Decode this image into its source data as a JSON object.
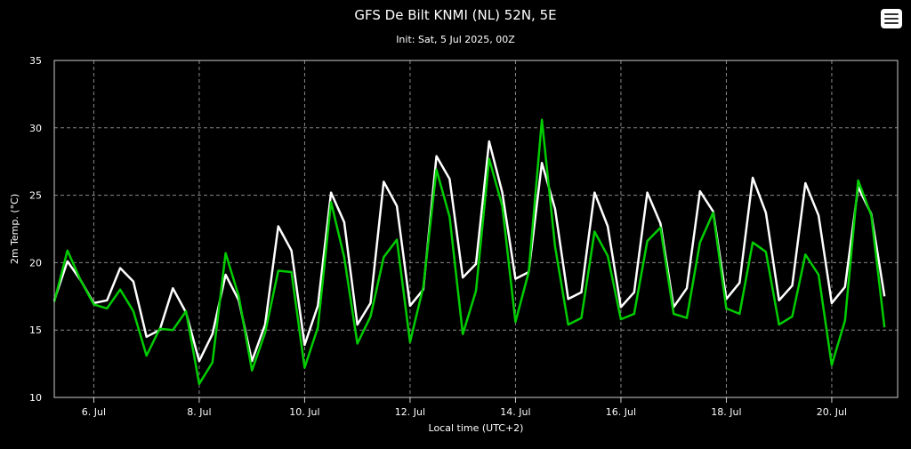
{
  "header": {
    "title": "GFS De Bilt KNMI (NL) 52N, 5E",
    "subtitle": "Init: Sat, 5 Jul 2025, 00Z",
    "menu_icon": "hamburger-menu-icon"
  },
  "chart_data": {
    "type": "line",
    "title": "GFS De Bilt KNMI (NL) 52N, 5E",
    "subtitle": "Init: Sat, 5 Jul 2025, 00Z",
    "xlabel": "Local time (UTC+2)",
    "ylabel": "2m Temp. (°C)",
    "ylim": [
      10,
      35
    ],
    "yticks": [
      10,
      15,
      20,
      25,
      30,
      35
    ],
    "xlim": [
      5.25,
      21.25
    ],
    "xticks": [
      {
        "value": 6,
        "label": "6. Jul"
      },
      {
        "value": 8,
        "label": "8. Jul"
      },
      {
        "value": 10,
        "label": "10. Jul"
      },
      {
        "value": 12,
        "label": "12. Jul"
      },
      {
        "value": 14,
        "label": "14. Jul"
      },
      {
        "value": 16,
        "label": "16. Jul"
      },
      {
        "value": 18,
        "label": "18. Jul"
      },
      {
        "value": 20,
        "label": "20. Jul"
      }
    ],
    "grid": true,
    "series": [
      {
        "color": "#ffffff",
        "points": [
          [
            5.25,
            17.2
          ],
          [
            5.5,
            20.1
          ],
          [
            5.75,
            18.7
          ],
          [
            6.0,
            17.0
          ],
          [
            6.25,
            17.2
          ],
          [
            6.5,
            19.6
          ],
          [
            6.75,
            18.6
          ],
          [
            7.0,
            14.5
          ],
          [
            7.25,
            15.0
          ],
          [
            7.5,
            18.1
          ],
          [
            7.75,
            16.3
          ],
          [
            8.0,
            12.7
          ],
          [
            8.25,
            14.7
          ],
          [
            8.5,
            19.1
          ],
          [
            8.75,
            17.2
          ],
          [
            9.0,
            12.7
          ],
          [
            9.25,
            15.4
          ],
          [
            9.5,
            22.7
          ],
          [
            9.75,
            20.9
          ],
          [
            10.0,
            13.9
          ],
          [
            10.25,
            16.8
          ],
          [
            10.5,
            25.2
          ],
          [
            10.75,
            23.0
          ],
          [
            11.0,
            15.4
          ],
          [
            11.25,
            17.0
          ],
          [
            11.5,
            26.0
          ],
          [
            11.75,
            24.2
          ],
          [
            12.0,
            16.8
          ],
          [
            12.25,
            18.0
          ],
          [
            12.5,
            27.9
          ],
          [
            12.75,
            26.2
          ],
          [
            13.0,
            18.9
          ],
          [
            13.25,
            19.9
          ],
          [
            13.5,
            29.0
          ],
          [
            13.75,
            25.2
          ],
          [
            14.0,
            18.8
          ],
          [
            14.25,
            19.3
          ],
          [
            14.5,
            27.4
          ],
          [
            14.75,
            24.0
          ],
          [
            15.0,
            17.3
          ],
          [
            15.25,
            17.8
          ],
          [
            15.5,
            25.2
          ],
          [
            15.75,
            22.7
          ],
          [
            16.0,
            16.7
          ],
          [
            16.25,
            17.8
          ],
          [
            16.5,
            25.2
          ],
          [
            16.75,
            22.9
          ],
          [
            17.0,
            16.7
          ],
          [
            17.25,
            18.1
          ],
          [
            17.5,
            25.3
          ],
          [
            17.75,
            23.8
          ],
          [
            18.0,
            17.3
          ],
          [
            18.25,
            18.5
          ],
          [
            18.5,
            26.3
          ],
          [
            18.75,
            23.7
          ],
          [
            19.0,
            17.2
          ],
          [
            19.25,
            18.3
          ],
          [
            19.5,
            25.9
          ],
          [
            19.75,
            23.5
          ],
          [
            20.0,
            17.0
          ],
          [
            20.25,
            18.2
          ],
          [
            20.5,
            25.6
          ],
          [
            20.75,
            23.6
          ],
          [
            21.0,
            17.5
          ]
        ]
      },
      {
        "color": "#00cc00",
        "points": [
          [
            5.25,
            17.1
          ],
          [
            5.5,
            20.9
          ],
          [
            5.75,
            18.7
          ],
          [
            6.0,
            16.9
          ],
          [
            6.25,
            16.6
          ],
          [
            6.5,
            18.0
          ],
          [
            6.75,
            16.4
          ],
          [
            7.0,
            13.1
          ],
          [
            7.25,
            15.1
          ],
          [
            7.5,
            15.0
          ],
          [
            7.75,
            16.4
          ],
          [
            8.0,
            11.0
          ],
          [
            8.25,
            12.6
          ],
          [
            8.5,
            20.7
          ],
          [
            8.75,
            17.5
          ],
          [
            9.0,
            12.0
          ],
          [
            9.25,
            14.8
          ],
          [
            9.5,
            19.4
          ],
          [
            9.75,
            19.3
          ],
          [
            10.0,
            12.2
          ],
          [
            10.25,
            15.2
          ],
          [
            10.5,
            24.5
          ],
          [
            10.75,
            20.4
          ],
          [
            11.0,
            14.0
          ],
          [
            11.25,
            16.0
          ],
          [
            11.5,
            20.4
          ],
          [
            11.75,
            21.7
          ],
          [
            12.0,
            14.1
          ],
          [
            12.25,
            18.2
          ],
          [
            12.5,
            26.9
          ],
          [
            12.75,
            23.4
          ],
          [
            13.0,
            14.7
          ],
          [
            13.25,
            17.9
          ],
          [
            13.5,
            27.7
          ],
          [
            13.75,
            24.2
          ],
          [
            14.0,
            15.6
          ],
          [
            14.25,
            19.3
          ],
          [
            14.5,
            30.6
          ],
          [
            14.75,
            21.2
          ],
          [
            15.0,
            15.4
          ],
          [
            15.25,
            15.9
          ],
          [
            15.5,
            22.3
          ],
          [
            15.75,
            20.5
          ],
          [
            16.0,
            15.8
          ],
          [
            16.25,
            16.2
          ],
          [
            16.5,
            21.6
          ],
          [
            16.75,
            22.6
          ],
          [
            17.0,
            16.2
          ],
          [
            17.25,
            15.9
          ],
          [
            17.5,
            21.5
          ],
          [
            17.75,
            23.7
          ],
          [
            18.0,
            16.6
          ],
          [
            18.25,
            16.2
          ],
          [
            18.5,
            21.5
          ],
          [
            18.75,
            20.8
          ],
          [
            19.0,
            15.4
          ],
          [
            19.25,
            16.0
          ],
          [
            19.5,
            20.6
          ],
          [
            19.75,
            19.1
          ],
          [
            20.0,
            12.4
          ],
          [
            20.25,
            15.7
          ],
          [
            20.5,
            26.1
          ],
          [
            20.75,
            23.5
          ],
          [
            21.0,
            15.2
          ]
        ]
      }
    ]
  }
}
